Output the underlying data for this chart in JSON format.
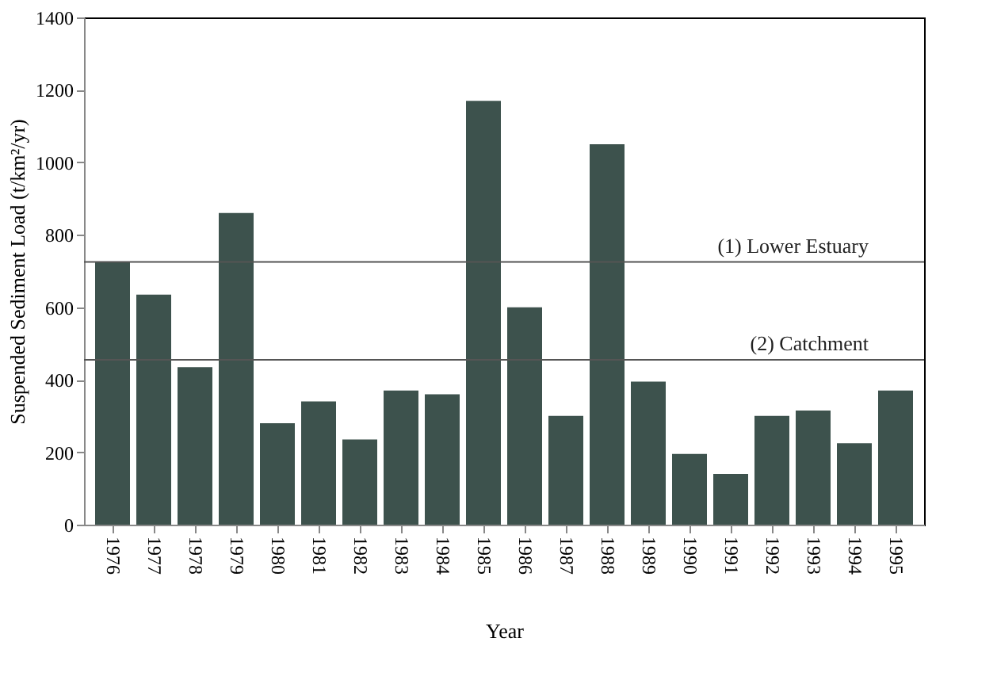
{
  "chart_data": {
    "type": "bar",
    "xlabel": "Year",
    "ylabel": "Suspended Sediment Load (t/km²/yr)",
    "categories": [
      "1976",
      "1977",
      "1978",
      "1979",
      "1980",
      "1981",
      "1982",
      "1983",
      "1984",
      "1985",
      "1986",
      "1987",
      "1988",
      "1989",
      "1990",
      "1991",
      "1992",
      "1993",
      "1994",
      "1995"
    ],
    "values": [
      725,
      635,
      435,
      860,
      280,
      340,
      235,
      370,
      360,
      1170,
      600,
      300,
      1050,
      395,
      195,
      140,
      300,
      315,
      225,
      370
    ],
    "color": "#3d524d",
    "ylim": [
      0,
      1400
    ],
    "yticks": [
      0,
      200,
      400,
      600,
      800,
      1000,
      1200,
      1400
    ],
    "grid": false,
    "ref_lines": [
      {
        "axis": "y",
        "value": 725,
        "label": "(1) Lower Estuary",
        "color": "#555555"
      },
      {
        "axis": "y",
        "value": 455,
        "label": "(2) Catchment",
        "color": "#555555"
      }
    ]
  }
}
